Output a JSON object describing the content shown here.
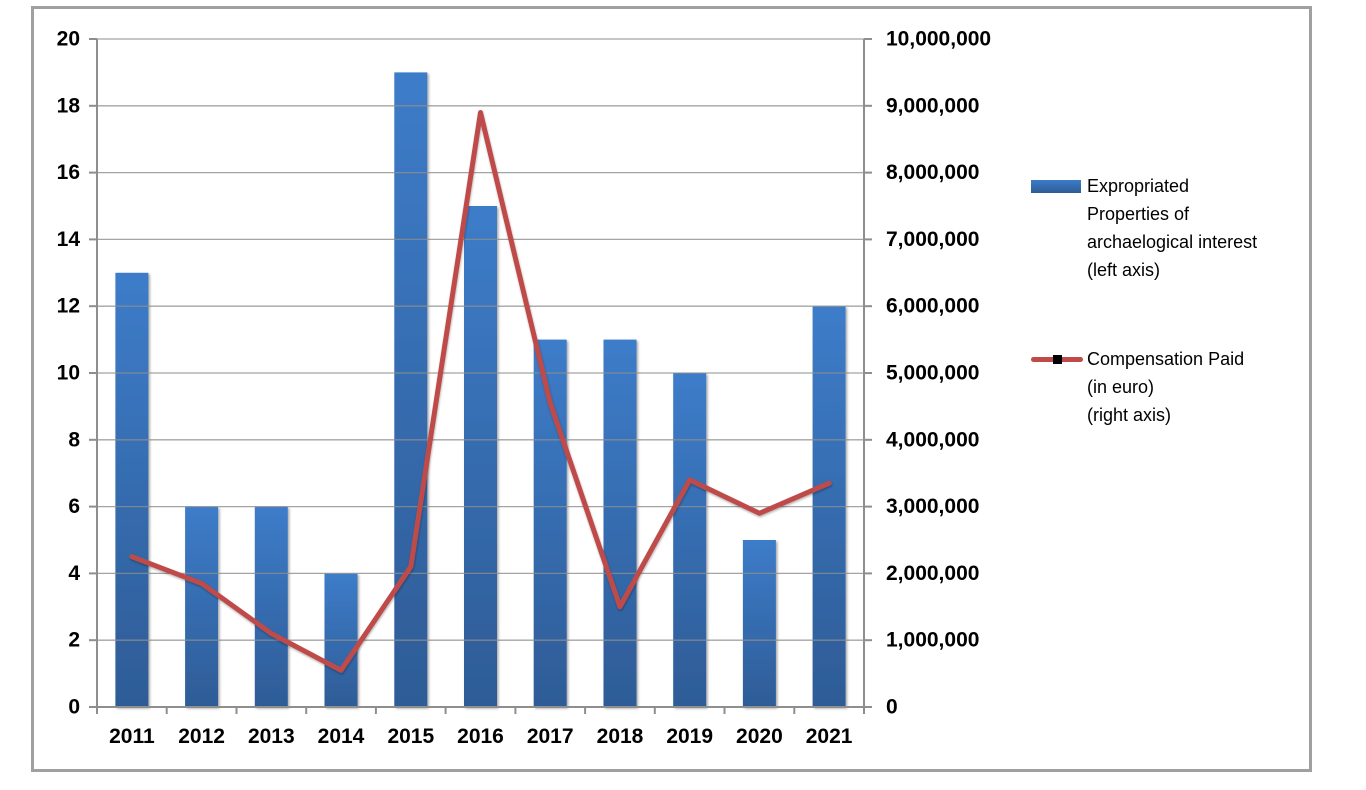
{
  "chart_data": {
    "type": "bar+line",
    "categories": [
      "2011",
      "2012",
      "2013",
      "2014",
      "2015",
      "2016",
      "2017",
      "2018",
      "2019",
      "2020",
      "2021"
    ],
    "series": [
      {
        "name": "Expropriated Properties of archaelogical interest (left axis)",
        "type": "bar",
        "axis": "left",
        "values": [
          13,
          6,
          6,
          4,
          19,
          15,
          11,
          11,
          10,
          5,
          12
        ]
      },
      {
        "name": "Compensation Paid (in euro) (right axis)",
        "type": "line",
        "axis": "right",
        "values": [
          2250000,
          1850000,
          1100000,
          550000,
          2100000,
          8900000,
          4550000,
          1500000,
          3400000,
          2900000,
          3350000
        ]
      }
    ],
    "left_axis": {
      "min": 0,
      "max": 20,
      "step": 2,
      "tick_labels": [
        "0",
        "2",
        "4",
        "6",
        "8",
        "10",
        "12",
        "14",
        "16",
        "18",
        "20"
      ]
    },
    "right_axis": {
      "min": 0,
      "max": 10000000,
      "step": 1000000,
      "tick_labels": [
        "0",
        "1,000,000",
        "2,000,000",
        "3,000,000",
        "4,000,000",
        "5,000,000",
        "6,000,000",
        "7,000,000",
        "8,000,000",
        "9,000,000",
        "10,000,000"
      ]
    },
    "grid": true,
    "legend_position": "right",
    "legend": [
      {
        "swatch": "bar",
        "lines": [
          "Expropriated",
          "Properties of",
          "archaelogical interest",
          "(left axis)"
        ]
      },
      {
        "swatch": "line-with-square-marker",
        "lines": [
          "Compensation Paid",
          "(in euro)",
          "(right axis)"
        ]
      }
    ],
    "colors": {
      "bar_top": "#3D7CC9",
      "bar_bottom": "#2E5C96",
      "line": "#BE4B48",
      "grid": "#8E8E8E",
      "axis": "#8E8E8E",
      "text": "#000000",
      "frame_border": "#A0A0A0",
      "background": "#FFFFFF"
    }
  }
}
